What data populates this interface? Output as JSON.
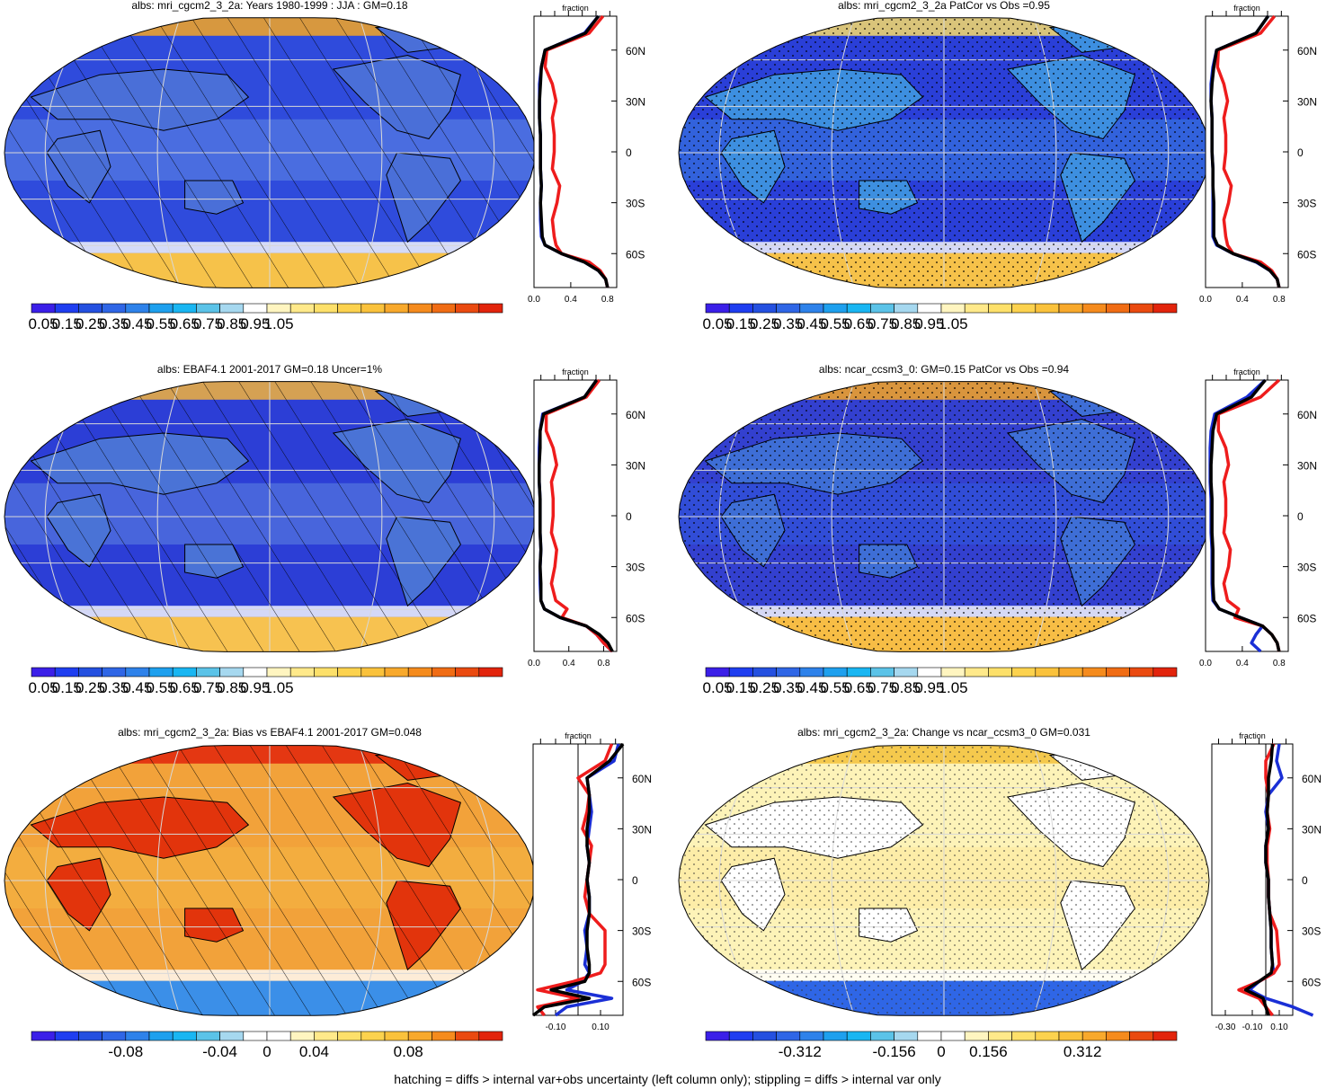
{
  "figure": {
    "footer": "hatching = diffs > internal var+obs uncertainty (left column only); stippling = diffs > internal var only"
  },
  "colors": {
    "albedo_scale": [
      "#3b1fe8",
      "#1f3ef0",
      "#2450e0",
      "#2f66e6",
      "#2e82ea",
      "#1ea0ee",
      "#19b6f2",
      "#5bc3e8",
      "#a6d8ef",
      "#ffffff",
      "#fff5c0",
      "#ffe98a",
      "#fde06a",
      "#fcd24e",
      "#fac23c",
      "#f8a92c",
      "#f58b1d",
      "#f06c14",
      "#ea4a10",
      "#e2240c"
    ],
    "diff_scale": [
      "#3b1fe8",
      "#1f3ef0",
      "#2450e0",
      "#2f66e6",
      "#2e82ea",
      "#1ea0ee",
      "#19b6f2",
      "#5bc3e8",
      "#a6d8ef",
      "#ffffff",
      "#ffffff",
      "#fff5c0",
      "#ffe98a",
      "#fde06a",
      "#fcd24e",
      "#fac23c",
      "#f8a92c",
      "#f58b1d",
      "#ea4a10",
      "#e2240c"
    ],
    "model_line": "#1a2fd6",
    "obs_line": "#ee1c1c",
    "ref_line": "#000000"
  },
  "chart_data": [
    {
      "type": "heatmap",
      "title": "albs: mri_cgcm2_3_2a: Years 1980-1999 : JJA : GM=0.18",
      "colorbar_labels": [
        "0.05",
        "0.15",
        "0.25",
        "0.35",
        "0.45",
        "0.55",
        "0.65",
        "0.75",
        "0.85",
        "0.95",
        "1.05"
      ],
      "pattern": "hatching",
      "zonal_profile": {
        "xlabel": "fraction",
        "xticks": [
          "0.0",
          "0.4",
          "0.8"
        ],
        "yticks": [
          "60N",
          "30N",
          "0",
          "30S",
          "60S"
        ],
        "lat": [
          80,
          70,
          60,
          50,
          40,
          30,
          20,
          10,
          0,
          -10,
          -20,
          -30,
          -40,
          -50,
          -55,
          -60,
          -65,
          -70,
          -75,
          -80
        ],
        "series": [
          {
            "color_key": "model_line",
            "values": [
              0.7,
              0.55,
              0.12,
              0.08,
              0.06,
              0.06,
              0.06,
              0.07,
              0.07,
              0.07,
              0.08,
              0.07,
              0.07,
              0.08,
              0.12,
              0.3,
              0.55,
              0.7,
              0.78,
              0.8
            ]
          },
          {
            "color_key": "obs_line",
            "values": [
              0.75,
              0.6,
              0.14,
              0.12,
              0.2,
              0.24,
              0.2,
              0.22,
              0.22,
              0.2,
              0.28,
              0.25,
              0.2,
              0.22,
              0.24,
              0.3,
              0.6,
              0.72,
              0.78,
              0.8
            ]
          },
          {
            "color_key": "ref_line",
            "values": [
              0.7,
              0.56,
              0.12,
              0.08,
              0.07,
              0.06,
              0.06,
              0.07,
              0.07,
              0.07,
              0.08,
              0.07,
              0.08,
              0.09,
              0.12,
              0.3,
              0.55,
              0.7,
              0.78,
              0.8
            ]
          }
        ]
      }
    },
    {
      "type": "heatmap",
      "title": "albs: mri_cgcm2_3_2a PatCor vs Obs =0.95",
      "colorbar_labels": [
        "0.05",
        "0.15",
        "0.25",
        "0.35",
        "0.45",
        "0.55",
        "0.65",
        "0.75",
        "0.85",
        "0.95",
        "1.05"
      ],
      "pattern": "stippling",
      "zonal_profile": {
        "xlabel": "fraction",
        "xticks": [
          "0.0",
          "0.4",
          "0.8"
        ],
        "yticks": [
          "60N",
          "30N",
          "0",
          "30S",
          "60S"
        ],
        "lat": [
          80,
          70,
          60,
          50,
          40,
          30,
          20,
          10,
          0,
          -10,
          -20,
          -30,
          -40,
          -50,
          -55,
          -60,
          -65,
          -70,
          -75,
          -80
        ],
        "series": [
          {
            "color_key": "model_line",
            "values": [
              0.68,
              0.55,
              0.12,
              0.08,
              0.06,
              0.06,
              0.07,
              0.07,
              0.07,
              0.08,
              0.08,
              0.08,
              0.08,
              0.08,
              0.12,
              0.3,
              0.55,
              0.7,
              0.78,
              0.8
            ]
          },
          {
            "color_key": "obs_line",
            "values": [
              0.75,
              0.6,
              0.14,
              0.13,
              0.2,
              0.24,
              0.2,
              0.22,
              0.22,
              0.2,
              0.28,
              0.25,
              0.2,
              0.22,
              0.24,
              0.3,
              0.6,
              0.72,
              0.78,
              0.8
            ]
          },
          {
            "color_key": "ref_line",
            "values": [
              0.68,
              0.55,
              0.12,
              0.09,
              0.07,
              0.06,
              0.07,
              0.07,
              0.07,
              0.08,
              0.08,
              0.09,
              0.09,
              0.09,
              0.13,
              0.3,
              0.56,
              0.7,
              0.78,
              0.8
            ]
          }
        ]
      }
    },
    {
      "type": "heatmap",
      "title": "albs: EBAF4.1 2001-2017 GM=0.18 Uncer=1%",
      "colorbar_labels": [
        "0.05",
        "0.15",
        "0.25",
        "0.35",
        "0.45",
        "0.55",
        "0.65",
        "0.75",
        "0.85",
        "0.95",
        "1.05"
      ],
      "pattern": "hatching",
      "zonal_profile": {
        "xlabel": "fraction",
        "xticks": [
          "0.0",
          "0.4",
          "0.8"
        ],
        "yticks": [
          "60N",
          "30N",
          "0",
          "30S",
          "60S"
        ],
        "lat": [
          80,
          70,
          60,
          50,
          40,
          30,
          20,
          10,
          0,
          -10,
          -20,
          -30,
          -40,
          -50,
          -55,
          -60,
          -65,
          -70,
          -75,
          -80
        ],
        "series": [
          {
            "color_key": "model_line",
            "values": [
              0.72,
              0.58,
              0.1,
              0.07,
              0.06,
              0.06,
              0.06,
              0.07,
              0.07,
              0.07,
              0.08,
              0.07,
              0.07,
              0.08,
              0.12,
              0.3,
              0.6,
              0.72,
              0.8,
              0.9
            ]
          },
          {
            "color_key": "obs_line",
            "values": [
              0.75,
              0.6,
              0.14,
              0.14,
              0.22,
              0.26,
              0.2,
              0.22,
              0.22,
              0.2,
              0.26,
              0.24,
              0.2,
              0.25,
              0.38,
              0.32,
              0.6,
              0.72,
              0.8,
              0.9
            ]
          },
          {
            "color_key": "ref_line",
            "values": [
              0.72,
              0.58,
              0.11,
              0.07,
              0.07,
              0.06,
              0.06,
              0.07,
              0.07,
              0.07,
              0.08,
              0.07,
              0.08,
              0.08,
              0.12,
              0.3,
              0.6,
              0.75,
              0.85,
              0.9
            ]
          }
        ]
      }
    },
    {
      "type": "heatmap",
      "title": "albs: ncar_ccsm3_0: GM=0.15 PatCor vs Obs =0.94",
      "colorbar_labels": [
        "0.05",
        "0.15",
        "0.25",
        "0.35",
        "0.45",
        "0.55",
        "0.65",
        "0.75",
        "0.85",
        "0.95",
        "1.05"
      ],
      "pattern": "stippling",
      "zonal_profile": {
        "xlabel": "fraction",
        "xticks": [
          "0.0",
          "0.4",
          "0.8"
        ],
        "yticks": [
          "60N",
          "30N",
          "0",
          "30S",
          "60S"
        ],
        "lat": [
          80,
          70,
          60,
          50,
          40,
          30,
          20,
          10,
          0,
          -10,
          -20,
          -30,
          -40,
          -50,
          -55,
          -60,
          -65,
          -70,
          -75,
          -80
        ],
        "series": [
          {
            "color_key": "model_line",
            "values": [
              0.65,
              0.45,
              0.1,
              0.06,
              0.05,
              0.05,
              0.05,
              0.06,
              0.06,
              0.06,
              0.07,
              0.07,
              0.07,
              0.08,
              0.15,
              0.38,
              0.62,
              0.55,
              0.5,
              0.6
            ]
          },
          {
            "color_key": "obs_line",
            "values": [
              0.8,
              0.6,
              0.14,
              0.14,
              0.22,
              0.25,
              0.2,
              0.22,
              0.22,
              0.2,
              0.27,
              0.25,
              0.2,
              0.24,
              0.36,
              0.32,
              0.62,
              0.72,
              0.78,
              0.8
            ]
          },
          {
            "color_key": "ref_line",
            "values": [
              0.65,
              0.5,
              0.12,
              0.08,
              0.07,
              0.06,
              0.06,
              0.07,
              0.07,
              0.07,
              0.08,
              0.08,
              0.08,
              0.09,
              0.15,
              0.38,
              0.62,
              0.72,
              0.78,
              0.8
            ]
          }
        ]
      }
    },
    {
      "type": "heatmap",
      "title": "albs: mri_cgcm2_3_2a: Bias vs EBAF4.1 2001-2017 GM=0.048",
      "colorbar_labels": [
        "-0.08",
        "-0.04",
        "0",
        "0.04",
        "0.08"
      ],
      "pattern": "hatching",
      "zonal_profile": {
        "xlabel": "fraction",
        "xticks": [
          "-0.10",
          "0.10"
        ],
        "yticks": [
          "60N",
          "30N",
          "0",
          "30S",
          "60S"
        ],
        "lat": [
          80,
          70,
          60,
          50,
          40,
          30,
          20,
          10,
          0,
          -10,
          -20,
          -30,
          -40,
          -50,
          -55,
          -60,
          -65,
          -70,
          -75,
          -80
        ],
        "series": [
          {
            "color_key": "model_line",
            "values": [
              0.18,
              0.16,
              0.04,
              0.05,
              0.06,
              0.05,
              0.04,
              0.05,
              0.04,
              0.05,
              0.05,
              0.03,
              0.04,
              0.03,
              0.05,
              0.02,
              -0.05,
              0.15,
              -0.05,
              -0.1
            ]
          },
          {
            "color_key": "obs_line",
            "values": [
              0.15,
              0.12,
              0.0,
              0.05,
              0.04,
              0.02,
              0.06,
              0.05,
              0.04,
              0.03,
              0.05,
              0.12,
              0.12,
              0.12,
              0.1,
              -0.02,
              -0.18,
              0.0,
              -0.18,
              -0.15
            ]
          },
          {
            "color_key": "ref_line",
            "values": [
              0.2,
              0.14,
              0.04,
              0.05,
              0.05,
              0.04,
              0.04,
              0.05,
              0.04,
              0.05,
              0.05,
              0.04,
              0.04,
              0.05,
              0.05,
              0.03,
              -0.12,
              0.05,
              -0.15,
              -0.2
            ]
          }
        ]
      }
    },
    {
      "type": "heatmap",
      "title": "albs: mri_cgcm2_3_2a: Change vs ncar_ccsm3_0 GM=0.031",
      "colorbar_labels": [
        "-0.312",
        "-0.156",
        "0",
        "0.156",
        "0.312"
      ],
      "pattern": "stippling",
      "zonal_profile": {
        "xlabel": "fraction",
        "xticks": [
          "-0.30",
          "-0.10",
          "0.10"
        ],
        "yticks": [
          "60N",
          "30N",
          "0",
          "30S",
          "60S"
        ],
        "lat": [
          80,
          70,
          60,
          50,
          40,
          30,
          20,
          10,
          0,
          -10,
          -20,
          -30,
          -40,
          -50,
          -55,
          -60,
          -65,
          -70,
          -75,
          -80
        ],
        "series": [
          {
            "color_key": "model_line",
            "values": [
              0.1,
              0.08,
              0.12,
              0.02,
              0.0,
              0.02,
              0.0,
              0.0,
              0.02,
              0.02,
              0.03,
              0.04,
              0.04,
              0.05,
              0.06,
              -0.05,
              -0.12,
              0.0,
              0.2,
              0.35
            ]
          },
          {
            "color_key": "obs_line",
            "values": [
              0.06,
              0.0,
              0.0,
              0.02,
              0.01,
              0.03,
              0.01,
              0.01,
              0.02,
              0.02,
              0.03,
              0.08,
              0.09,
              0.1,
              0.06,
              -0.05,
              -0.2,
              -0.05,
              0.0,
              0.05
            ]
          },
          {
            "color_key": "ref_line",
            "values": [
              0.05,
              0.04,
              0.02,
              0.02,
              0.01,
              0.02,
              0.0,
              0.0,
              0.02,
              0.02,
              0.03,
              0.04,
              0.04,
              0.05,
              0.04,
              -0.05,
              -0.15,
              -0.02,
              0.0,
              0.02
            ]
          }
        ]
      }
    }
  ]
}
